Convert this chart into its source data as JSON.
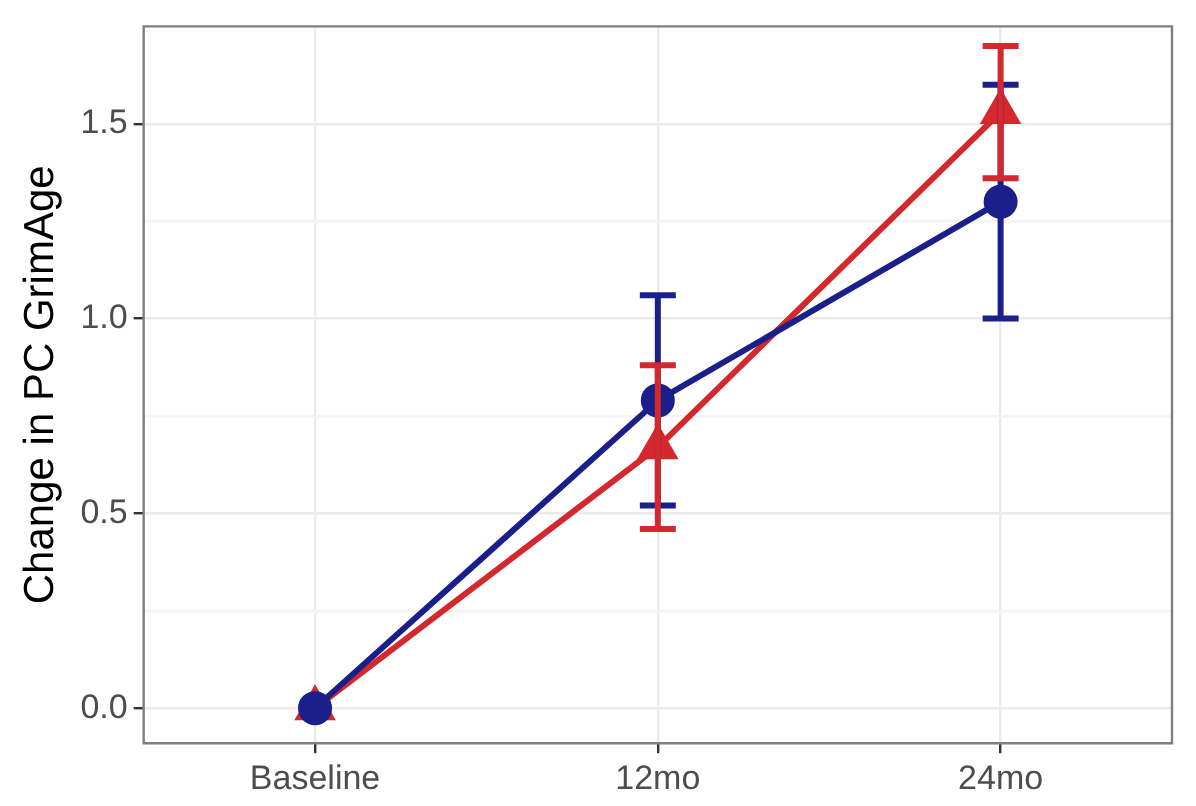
{
  "chart_data": {
    "type": "line",
    "ylabel": "Change in PC GrimAge",
    "categories": [
      "Baseline",
      "12mo",
      "24mo"
    ],
    "series": [
      {
        "color": "#1b1f8a",
        "marker": "circle",
        "values": [
          0,
          0.79,
          1.3
        ],
        "errors": [
          null,
          0.27,
          0.3
        ]
      },
      {
        "color": "#d3282d",
        "marker": "triangle",
        "values": [
          0,
          0.67,
          1.53
        ],
        "errors": [
          null,
          0.21,
          0.17
        ]
      }
    ],
    "ylim": [
      -0.09,
      1.75
    ],
    "yticks": [
      {
        "value": 0,
        "label": "0.0"
      },
      {
        "value": 0.25,
        "label": null
      },
      {
        "value": 0.5,
        "label": "0.5"
      },
      {
        "value": 0.75,
        "label": null
      },
      {
        "value": 1,
        "label": "1.0"
      },
      {
        "value": 1.25,
        "label": null
      },
      {
        "value": 1.5,
        "label": "1.5"
      }
    ],
    "grid": true,
    "legend": false,
    "line_style": "solid"
  }
}
